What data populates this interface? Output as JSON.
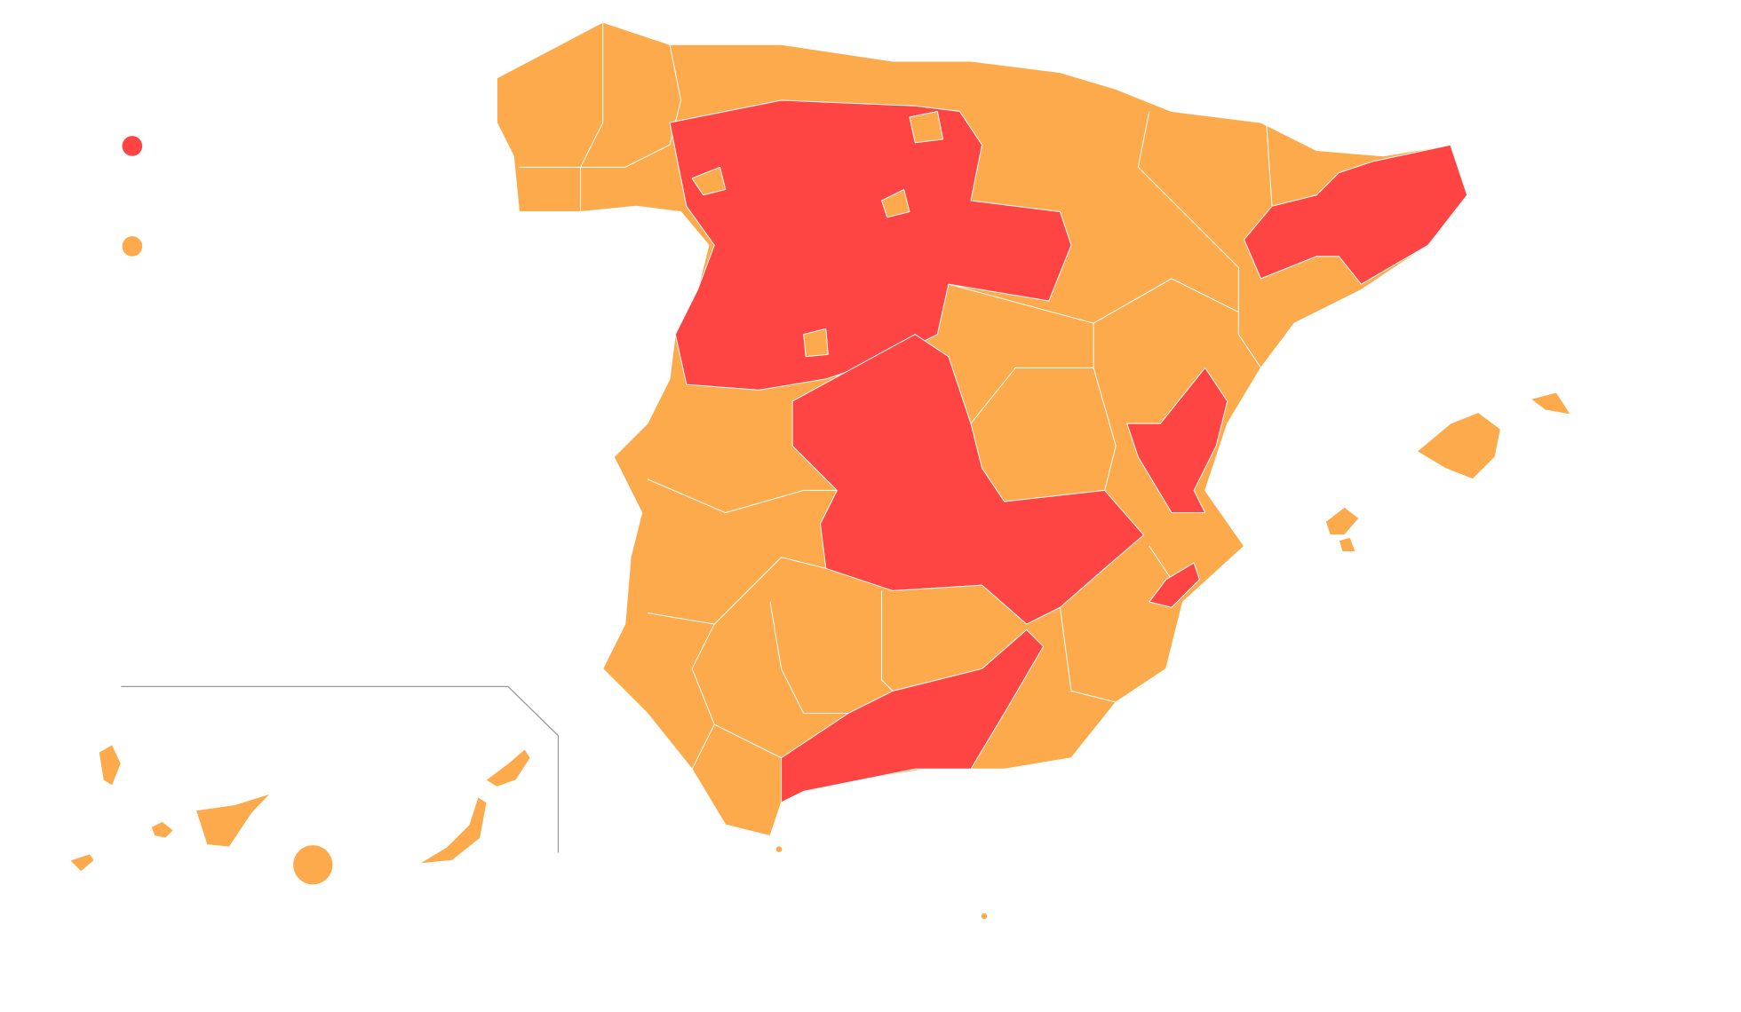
{
  "legend": {
    "items": [
      {
        "color": "#ff4444"
      },
      {
        "color": "#fcaa4c"
      }
    ]
  }
}
